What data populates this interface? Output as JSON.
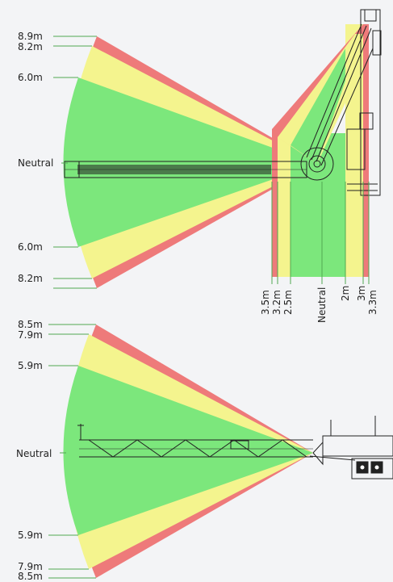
{
  "colors": {
    "background": "#f3f4f6",
    "safe_zone": "#7ce77c",
    "caution_zone": "#f4f48e",
    "danger_zone": "#ee7a7a",
    "leader_line": "#52a852",
    "outline": "#222222"
  },
  "top_diagram": {
    "left_labels": {
      "l_8_9": "8.9m",
      "l_8_2": "8.2m",
      "l_6_0": "6.0m",
      "l_neutral": "Neutral",
      "l_6_0_b": "6.0m",
      "l_8_2_b": "8.2m"
    },
    "bottom_labels": {
      "b_3_5": "3.5m",
      "b_3_2": "3.2m",
      "b_2_5": "2.5m",
      "b_neutral": "Neutral",
      "b_2": "2m",
      "b_3": "3m",
      "b_3_3": "3.3m"
    }
  },
  "bottom_diagram": {
    "left_labels": {
      "l_8_5": "8.5m",
      "l_7_9": "7.9m",
      "l_5_9": "5.9m",
      "l_neutral": "Neutral",
      "l_5_9_b": "5.9m",
      "l_7_9_b": "7.9m",
      "l_8_5_b": "8.5m"
    }
  }
}
